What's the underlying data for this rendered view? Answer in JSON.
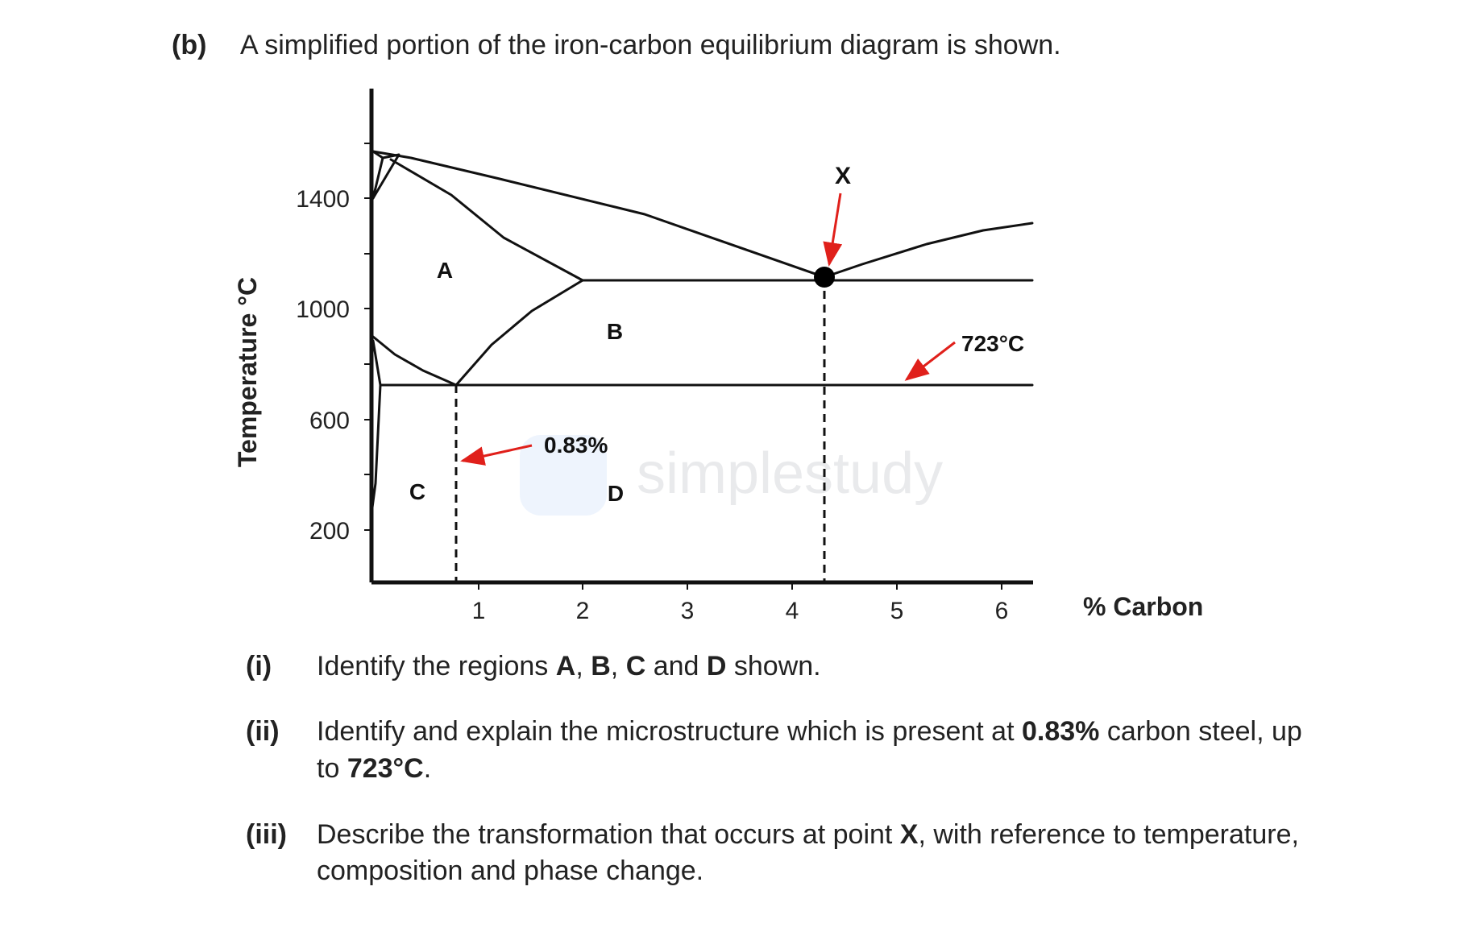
{
  "question": {
    "label": "(b)",
    "intro": "A simplified portion of the iron-carbon equilibrium diagram is shown."
  },
  "chart_data": {
    "type": "phase-diagram",
    "xlabel": "% Carbon",
    "ylabel": "Temperature °C",
    "x_ticks": [
      "1",
      "2",
      "3",
      "4",
      "5",
      "6"
    ],
    "y_ticks": [
      "1400",
      "1000",
      "600",
      "200"
    ],
    "region_labels": [
      "A",
      "B",
      "C",
      "D"
    ],
    "point_label": "X",
    "annotations": {
      "carbon": "0.83%",
      "eutectoid_temp": "723°C"
    },
    "watermark": "simplestudy"
  },
  "parts": [
    {
      "num": "(i)",
      "segs": [
        {
          "t": "Identify the regions ",
          "b": false
        },
        {
          "t": "A",
          "b": true
        },
        {
          "t": ", ",
          "b": false
        },
        {
          "t": "B",
          "b": true
        },
        {
          "t": ", ",
          "b": false
        },
        {
          "t": "C",
          "b": true
        },
        {
          "t": " and ",
          "b": false
        },
        {
          "t": "D",
          "b": true
        },
        {
          "t": " shown.",
          "b": false
        }
      ]
    },
    {
      "num": "(ii)",
      "line1": [
        {
          "t": "Identify and explain the microstructure which is present at ",
          "b": false
        },
        {
          "t": "0.83%",
          "b": true
        },
        {
          "t": " carbon steel, up",
          "b": false
        }
      ],
      "line2": [
        {
          "t": "to ",
          "b": false
        },
        {
          "t": "723°C",
          "b": true
        },
        {
          "t": ".",
          "b": false
        }
      ]
    },
    {
      "num": "(iii)",
      "line1": [
        {
          "t": "Describe the transformation that occurs at point ",
          "b": false
        },
        {
          "t": "X",
          "b": true
        },
        {
          "t": ", with reference to temperature,",
          "b": false
        }
      ],
      "line2": [
        {
          "t": "composition and phase change.",
          "b": false
        }
      ]
    }
  ]
}
